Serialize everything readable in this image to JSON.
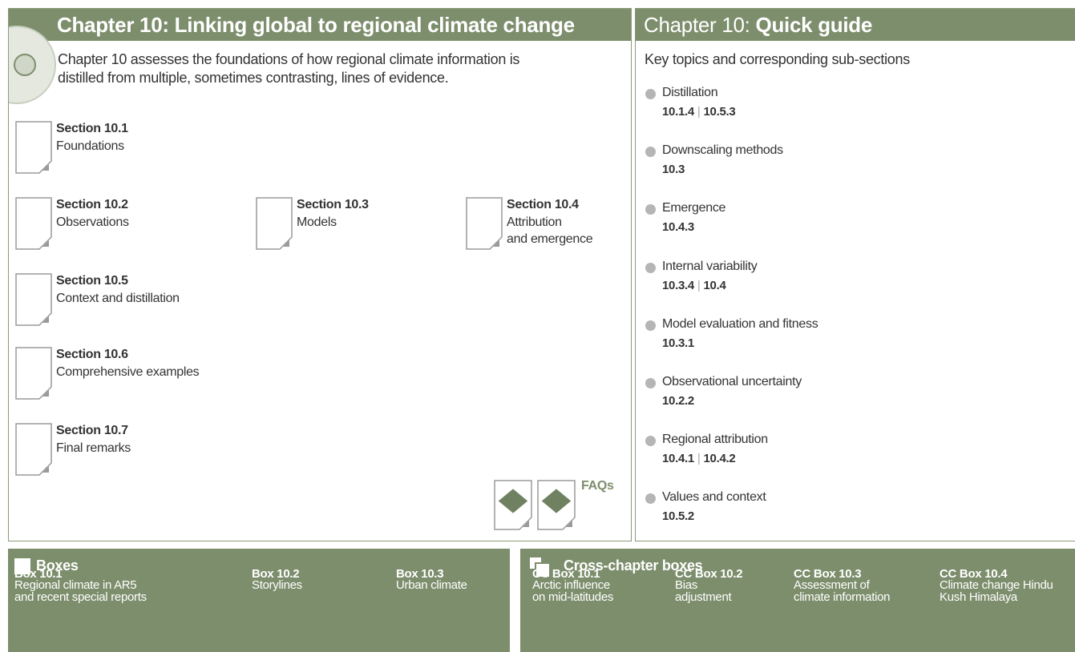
{
  "left": {
    "title": "Chapter 10: Linking global to regional climate change",
    "description": "Chapter 10 assesses the foundations of how regional climate information is\ndistilled from multiple, sometimes contrasting, lines of evidence.",
    "sections": [
      {
        "label": "Section 10.1",
        "name": "Foundations"
      },
      {
        "label": "Section 10.2",
        "name": "Observations"
      },
      {
        "label": "Section 10.3",
        "name": "Models"
      },
      {
        "label": "Section 10.4",
        "name": "Attribution\nand emergence"
      },
      {
        "label": "Section 10.5",
        "name": "Context and distillation"
      },
      {
        "label": "Section 10.6",
        "name": "Comprehensive examples"
      },
      {
        "label": "Section 10.7",
        "name": "Final remarks"
      }
    ],
    "faqs": "FAQs"
  },
  "right": {
    "title_prefix": "Chapter 10:",
    "title_bold": "Quick guide",
    "subtitle": "Key topics and corresponding sub-sections",
    "separator": "|",
    "topics": [
      {
        "name": "Distillation",
        "refs": [
          "10.1.4",
          "10.5.3"
        ]
      },
      {
        "name": "Downscaling methods",
        "refs": [
          "10.3"
        ]
      },
      {
        "name": "Emergence",
        "refs": [
          "10.4.3"
        ]
      },
      {
        "name": "Internal variability",
        "refs": [
          "10.3.4",
          "10.4"
        ]
      },
      {
        "name": "Model evaluation and fitness",
        "refs": [
          "10.3.1"
        ]
      },
      {
        "name": "Observational uncertainty",
        "refs": [
          "10.2.2"
        ]
      },
      {
        "name": "Regional attribution",
        "refs": [
          "10.4.1",
          "10.4.2"
        ]
      },
      {
        "name": "Values and context",
        "refs": [
          "10.5.2"
        ]
      }
    ]
  },
  "boxes": {
    "title": "Boxes",
    "items": [
      {
        "label": "Box 10.1",
        "name": "Regional climate in AR5\nand recent special reports"
      },
      {
        "label": "Box 10.2",
        "name": "Storylines"
      },
      {
        "label": "Box 10.3",
        "name": "Urban climate"
      }
    ]
  },
  "cross_chapter_boxes": {
    "title": "Cross-chapter boxes",
    "items": [
      {
        "label": "CC Box 10.1",
        "name": "Arctic influence\non mid-latitudes"
      },
      {
        "label": "CC Box 10.2",
        "name": "Bias\nadjustment"
      },
      {
        "label": "CC Box 10.3",
        "name": "Assessment of\nclimate information"
      },
      {
        "label": "CC Box 10.4",
        "name": "Climate change Hindu\nKush Himalaya"
      }
    ]
  }
}
